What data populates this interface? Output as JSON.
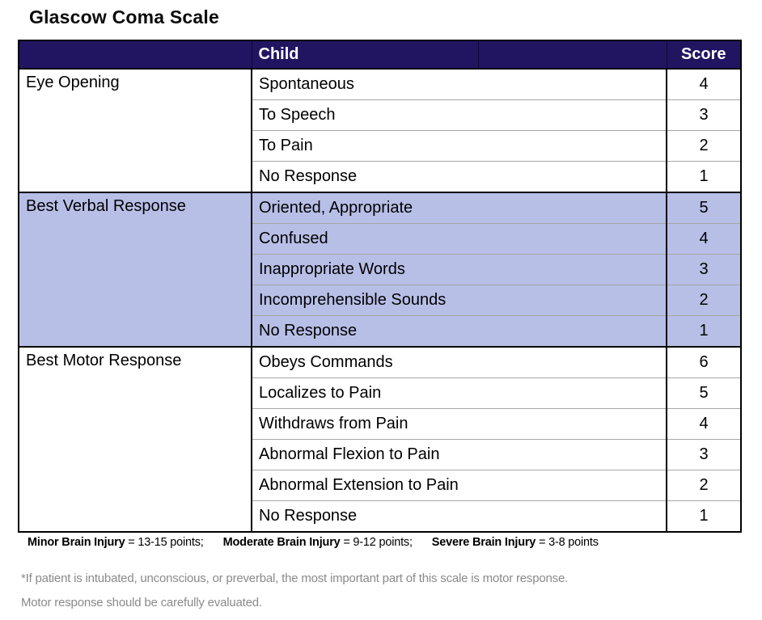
{
  "title": "Glascow Coma Scale",
  "table": {
    "header": {
      "child": "Child",
      "score": "Score"
    },
    "sections": [
      {
        "category": "Eye Opening",
        "highlighted": false,
        "rows": [
          [
            "Spontaneous",
            "4"
          ],
          [
            "To Speech",
            "3"
          ],
          [
            "To Pain",
            "2"
          ],
          [
            "No Response",
            "1"
          ]
        ]
      },
      {
        "category": "Best Verbal Response",
        "highlighted": true,
        "rows": [
          [
            "Oriented, Appropriate",
            "5"
          ],
          [
            "Confused",
            "4"
          ],
          [
            "Inappropriate Words",
            "3"
          ],
          [
            "Incomprehensible Sounds",
            "2"
          ],
          [
            "No Response",
            "1"
          ]
        ]
      },
      {
        "category": "Best Motor Response",
        "highlighted": false,
        "rows": [
          [
            "Obeys Commands",
            "6"
          ],
          [
            "Localizes to Pain",
            "5"
          ],
          [
            "Withdraws from Pain",
            "4"
          ],
          [
            "Abnormal Flexion to Pain",
            "3"
          ],
          [
            "Abnormal Extension to Pain",
            "2"
          ],
          [
            "No Response",
            "1"
          ]
        ]
      }
    ]
  },
  "legend": {
    "items": [
      {
        "label": "Minor Brain Injury",
        "value": " = 13-15 points;"
      },
      {
        "label": "Moderate Brain Injury",
        "value": " = 9-12 points;"
      },
      {
        "label": "Severe Brain Injury",
        "value": " = 3-8 points"
      }
    ]
  },
  "footnote": {
    "line1": "*If patient is intubated, unconscious, or preverbal, the most important part of this scale is motor response.",
    "line2": "Motor response should be carefully evaluated."
  },
  "colors": {
    "header_bg": "#211562",
    "header_text": "#ffffff",
    "highlight_bg": "#b7bfe7",
    "divider": "#a6a6a6",
    "border": "#000000",
    "footnote_text": "#8a8a8a"
  }
}
